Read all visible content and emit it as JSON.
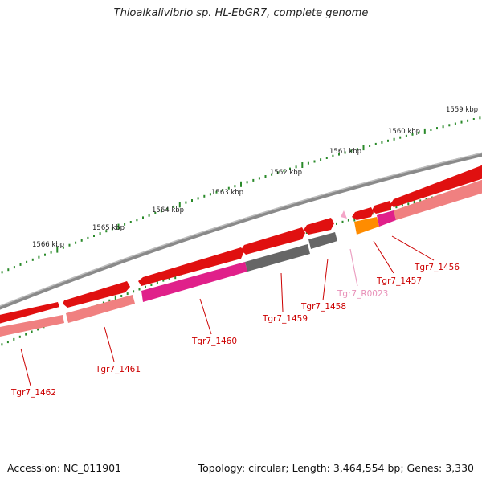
{
  "title": "Thioalkalivibrio sp. HL-EbGR7, complete genome",
  "footer": {
    "accession": "Accession: NC_011901",
    "summary": "Topology: circular; Length: 3,464,554 bp; Genes: 3,330"
  },
  "colors": {
    "backbone": "#7a7a7a",
    "forward_gene": "#e01010",
    "cds_light": "#f08080",
    "cds_magenta": "#e0208a",
    "cds_gray": "#666666",
    "cds_orange": "#ff8c00",
    "rna": "#f4a6c8",
    "tick": "#2a8a2a",
    "label_gene": "#cc0000",
    "label_rna": "#e890b8"
  },
  "scale": {
    "labels": [
      "1566 kbp",
      "1565 kbp",
      "1564 kbp",
      "1563 kbp",
      "1562 kbp",
      "1561 kbp",
      "1560 kbp",
      "1559 kbp"
    ]
  },
  "features": [
    {
      "name": "Tgr7_1462"
    },
    {
      "name": "Tgr7_1461"
    },
    {
      "name": "Tgr7_1460"
    },
    {
      "name": "Tgr7_1459"
    },
    {
      "name": "Tgr7_1458"
    },
    {
      "name": "Tgr7_R0023"
    },
    {
      "name": "Tgr7_1457"
    },
    {
      "name": "Tgr7_1456"
    }
  ]
}
